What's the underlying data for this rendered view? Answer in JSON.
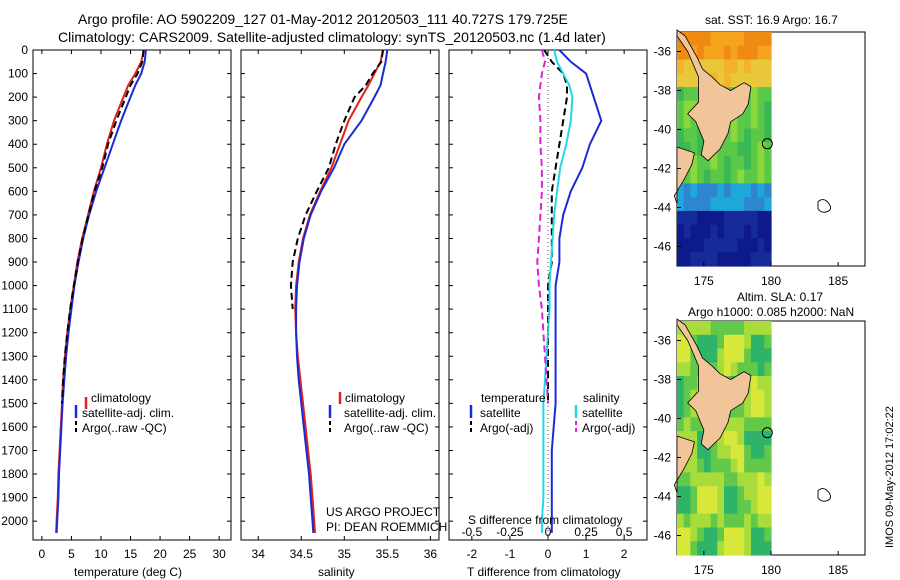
{
  "figure": {
    "title_line1": "Argo profile: AO 5902209_127 01-May-2012 20120503_111 40.727S 179.725E",
    "title_line2": "Climatology: CARS2009. Satellite-adjusted climatology: synTS_20120503.nc (1.4d later)",
    "project_line1": "US ARGO PROJECT",
    "project_line2": "PI: DEAN ROEMMICH",
    "stamp": "IMOS 09-May-2012 17:02:22"
  },
  "colors": {
    "climatology": "#e0201a",
    "satellite": "#1a2bd6",
    "argo": "#000000",
    "sat_salinity": "#22d8e8",
    "argo_salinity": "#e020d8",
    "land": "#f1c49a"
  },
  "depth_axis": {
    "ticks": [
      0,
      100,
      200,
      300,
      400,
      500,
      600,
      700,
      800,
      900,
      1000,
      1100,
      1200,
      1300,
      1400,
      1500,
      1600,
      1700,
      1800,
      1900,
      2000
    ],
    "range": [
      0,
      2080
    ]
  },
  "chart_data": [
    {
      "type": "line",
      "panel": "temperature",
      "xlabel": "temperature (deg C)",
      "xlim": [
        -1.5,
        32
      ],
      "xticks": [
        0,
        5,
        10,
        15,
        20,
        25,
        30
      ],
      "y_inverted": true,
      "depth": [
        0,
        50,
        100,
        150,
        200,
        300,
        400,
        500,
        600,
        700,
        800,
        900,
        1000,
        1100,
        1200,
        1300,
        1400,
        1500,
        1600,
        1700,
        1800,
        1900,
        2000,
        2050
      ],
      "series": [
        {
          "name": "climatology",
          "style": "solid",
          "values": [
            17.3,
            16.8,
            15.8,
            14.6,
            13.8,
            12.2,
            11.0,
            10.0,
            8.8,
            7.8,
            6.8,
            6.0,
            5.4,
            4.8,
            4.3,
            3.9,
            3.6,
            3.4,
            3.2,
            3.0,
            2.8,
            2.7,
            2.5,
            2.4
          ]
        },
        {
          "name": "satellite-adj. clim.",
          "style": "solid",
          "values": [
            17.6,
            17.4,
            16.8,
            15.8,
            15.0,
            13.4,
            12.0,
            10.6,
            9.2,
            8.0,
            7.0,
            6.2,
            5.5,
            5.0,
            4.5,
            4.1,
            3.8,
            3.5,
            3.3,
            3.1,
            2.9,
            2.8,
            2.6,
            2.5
          ]
        },
        {
          "name": "Argo(..raw -QC)",
          "style": "dashed",
          "values": [
            17.2,
            17.0,
            16.2,
            15.0,
            14.2,
            12.6,
            11.2,
            10.2,
            8.9,
            7.9,
            6.9,
            6.1,
            5.4,
            4.8,
            4.3,
            3.9,
            3.6,
            3.4,
            null,
            null,
            null,
            null,
            null,
            null
          ]
        }
      ]
    },
    {
      "type": "line",
      "panel": "salinity",
      "xlabel": "salinity",
      "xlim": [
        33.8,
        36.1
      ],
      "xticks": [
        34,
        34.5,
        35,
        35.5,
        36
      ],
      "y_inverted": true,
      "depth": [
        0,
        50,
        100,
        150,
        200,
        300,
        400,
        500,
        600,
        700,
        800,
        900,
        1000,
        1100,
        1200,
        1300,
        1400,
        1500,
        1600,
        1700,
        1800,
        1900,
        2000,
        2050
      ],
      "series": [
        {
          "name": "climatology",
          "style": "solid",
          "values": [
            35.45,
            35.42,
            35.35,
            35.28,
            35.2,
            35.05,
            34.95,
            34.85,
            34.72,
            34.6,
            34.52,
            34.47,
            34.44,
            34.43,
            34.44,
            34.46,
            34.49,
            34.52,
            34.55,
            34.58,
            34.61,
            34.63,
            34.65,
            34.66
          ]
        },
        {
          "name": "satellite-adj. clim.",
          "style": "solid",
          "values": [
            35.5,
            35.48,
            35.45,
            35.42,
            35.35,
            35.2,
            35.0,
            34.88,
            34.73,
            34.61,
            34.53,
            34.48,
            34.45,
            34.44,
            34.44,
            34.45,
            34.47,
            34.5,
            34.53,
            34.56,
            34.59,
            34.61,
            34.63,
            34.64
          ]
        },
        {
          "name": "Argo(..raw -QC)",
          "style": "dashed",
          "values": [
            35.45,
            35.43,
            35.33,
            35.25,
            35.12,
            35.0,
            34.9,
            34.82,
            34.68,
            34.55,
            34.46,
            34.4,
            34.38,
            34.4,
            null,
            null,
            null,
            null,
            null,
            null,
            null,
            null,
            null,
            null
          ]
        }
      ]
    },
    {
      "type": "line",
      "panel": "difference",
      "xlabel": "T difference from climatology",
      "xlabel_top": "S difference from climatology",
      "xlim": [
        -2.6,
        2.6
      ],
      "xticks": [
        -2,
        -1,
        0,
        1,
        2
      ],
      "xticks_s": [
        -0.5,
        -0.25,
        0,
        0.25,
        0.5
      ],
      "y_inverted": true,
      "depth": [
        0,
        50,
        100,
        150,
        200,
        300,
        400,
        500,
        600,
        700,
        800,
        900,
        1000,
        1100,
        1200,
        1300,
        1400,
        1500,
        1600,
        1700,
        1800,
        1900,
        2000,
        2050
      ],
      "legend_titles": {
        "temperature": "temperature",
        "salinity": "salinity"
      },
      "series": [
        {
          "name": "satellite",
          "quantity": "temperature",
          "style": "solid",
          "values": [
            0.3,
            0.6,
            1.0,
            1.1,
            1.2,
            1.4,
            1.1,
            0.9,
            0.6,
            0.4,
            0.3,
            0.3,
            0.2,
            0.2,
            0.2,
            0.2,
            0.2,
            0.2,
            0.15,
            0.1,
            0.1,
            0.1,
            0.1,
            0.1
          ]
        },
        {
          "name": "Argo(-adj)",
          "quantity": "temperature",
          "style": "dashed",
          "values": [
            -0.1,
            0.1,
            0.4,
            0.5,
            0.5,
            0.4,
            0.3,
            0.2,
            0.1,
            0.1,
            0.1,
            0.1,
            0.0,
            0.0,
            0.0,
            0.0,
            0.0,
            0.0,
            null,
            null,
            null,
            null,
            null,
            null
          ]
        },
        {
          "name": "satellite",
          "quantity": "salinity",
          "style": "solid",
          "values": [
            0.04,
            0.06,
            0.1,
            0.14,
            0.16,
            0.15,
            0.12,
            0.08,
            0.06,
            0.04,
            0.03,
            0.02,
            0.01,
            0.01,
            0.0,
            -0.01,
            -0.02,
            -0.03,
            -0.03,
            -0.03,
            -0.03,
            -0.03,
            -0.04,
            -0.04
          ]
        },
        {
          "name": "Argo(-adj)",
          "quantity": "salinity",
          "style": "dashed",
          "values": [
            -0.04,
            -0.02,
            -0.04,
            -0.05,
            -0.06,
            -0.05,
            -0.05,
            -0.04,
            -0.04,
            -0.05,
            -0.06,
            -0.07,
            -0.06,
            -0.04,
            -0.03,
            -0.02,
            -0.01,
            0.0,
            null,
            null,
            null,
            null,
            null,
            null
          ]
        }
      ]
    },
    {
      "type": "heatmap",
      "panel": "map-sst",
      "title": "sat. SST: 16.9 Argo: 16.7",
      "xticks": [
        175,
        180,
        185
      ],
      "yticks": [
        -36,
        -38,
        -40,
        -42,
        -44,
        -46
      ],
      "xlim": [
        173,
        187
      ],
      "ylim": [
        -47,
        -35
      ],
      "float_position": [
        179.725,
        -40.727
      ]
    },
    {
      "type": "heatmap",
      "panel": "map-sla",
      "title_line1": "Altim. SLA: 0.17",
      "title_line2": "Argo h1000: 0.085 h2000: NaN",
      "xticks": [
        175,
        180,
        185
      ],
      "yticks": [
        -36,
        -38,
        -40,
        -42,
        -44,
        -46
      ],
      "xlim": [
        173,
        187
      ],
      "ylim": [
        -47,
        -35
      ],
      "float_position": [
        179.725,
        -40.727
      ]
    }
  ]
}
